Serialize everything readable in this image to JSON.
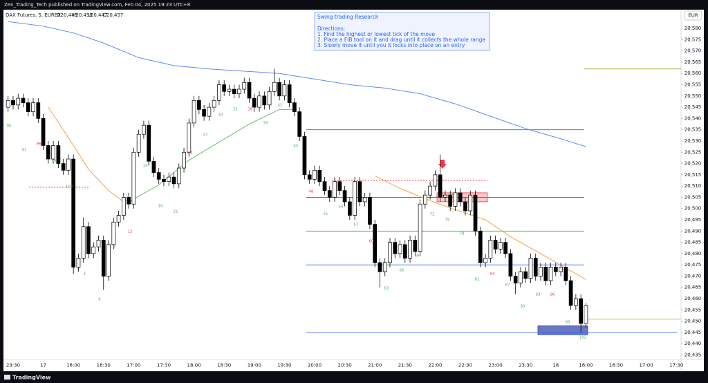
{
  "header": {
    "publisher": "Zen_Trading_Tech published on TradingView.com, Feb 04, 2025 19:23 UTC+8",
    "brand": "TradingView"
  },
  "chart_data": {
    "type": "candlestick",
    "symbol": "DAX Futures, 5, EUREX",
    "ohlc": [
      "O20,449",
      "H20,458",
      "L20,447",
      "C20,457"
    ],
    "currency": "EUR",
    "note": {
      "title": "Swing trading Research",
      "lines": [
        "Directions:",
        "1. Find the highest or lowest tick of the move",
        "2. Place a FIB tool on it and drag until it collects the whole range",
        "3. Slowly move it until you it locks into place on an entry"
      ]
    },
    "up_color": "#ffffff",
    "down_color": "#000000",
    "wick_color": "#000000",
    "categories": [
      null,
      "23:30",
      null,
      null,
      null,
      null,
      null,
      "17",
      null,
      null,
      null,
      null,
      null,
      "16:00",
      null,
      null,
      null,
      null,
      null,
      "16:30",
      null,
      null,
      null,
      null,
      null,
      "17:00",
      null,
      null,
      null,
      null,
      null,
      "17:30",
      null,
      null,
      null,
      null,
      null,
      "18:00",
      null,
      null,
      null,
      null,
      null,
      "18:30",
      null,
      null,
      null,
      null,
      null,
      "19:00",
      null,
      null,
      null,
      null,
      null,
      "19:30",
      null,
      null,
      null,
      null,
      null,
      "20:00",
      null,
      null,
      null,
      null,
      null,
      "20:30",
      null,
      null,
      null,
      null,
      null,
      "21:00",
      null,
      null,
      null,
      null,
      null,
      "21:30",
      null,
      null,
      null,
      null,
      null,
      "22:00",
      null,
      null,
      null,
      null,
      null,
      "22:30",
      null,
      null,
      null,
      null,
      null,
      "23:00",
      null,
      null,
      null,
      null,
      null,
      "23:30",
      null,
      null,
      null,
      null,
      null,
      "18",
      null,
      null,
      null,
      null,
      null,
      "16:00",
      null,
      null,
      null,
      null,
      null,
      "16:30",
      null,
      null,
      null,
      null,
      null,
      "17:00",
      null,
      null,
      null,
      null,
      null,
      "17:30"
    ],
    "open": [
      20545,
      20548,
      20546,
      20549,
      20547,
      20543,
      20547,
      20540,
      20528,
      20522,
      20528,
      20520,
      20517,
      20522,
      20474,
      20478,
      20492,
      20480,
      20483,
      20486,
      20470,
      20484,
      20494,
      20497,
      20505,
      20502,
      20525,
      20533,
      20537,
      20521,
      20516,
      20513,
      20512,
      20514,
      20511,
      20518,
      20525,
      20538,
      20548,
      20544,
      20541,
      20545,
      20548,
      20555,
      20552,
      20553,
      20551,
      20553,
      20556,
      20549,
      20545,
      20550,
      20546,
      20552,
      20556,
      20550,
      20555,
      20547,
      20543,
      20532,
      20515,
      20513,
      20517,
      20512,
      20508,
      20505,
      20512,
      20508,
      20503,
      20497,
      20512,
      20503,
      20505,
      20493,
      20476,
      20472,
      20476,
      20485,
      20480,
      20484,
      20478,
      20486,
      20481,
      20502,
      20506,
      20510,
      20515,
      20505,
      20506,
      20501,
      20507,
      20503,
      20499,
      20506,
      20490,
      20476,
      20478,
      20486,
      20482,
      20485,
      20480,
      20470,
      20467,
      20472,
      20469,
      20478,
      20470,
      20474,
      20468,
      20474,
      20472,
      20474,
      20468,
      20457,
      20460,
      20449,
      null,
      null,
      null,
      null,
      null,
      null,
      null,
      null,
      null,
      null,
      null,
      null,
      null,
      null,
      null,
      null,
      null,
      null
    ],
    "high": [
      20550,
      20550,
      20551,
      20551,
      20549,
      20549,
      20549,
      20542,
      20530,
      20530,
      20530,
      20522,
      20524,
      20524,
      20480,
      20496,
      20494,
      20485,
      20488,
      20488,
      20486,
      20496,
      20499,
      20507,
      20507,
      20527,
      20535,
      20539,
      20539,
      20523,
      20518,
      20515,
      20516,
      20516,
      20520,
      20527,
      20540,
      20550,
      20550,
      20546,
      20547,
      20550,
      20557,
      20557,
      20555,
      20555,
      20555,
      20558,
      20558,
      20551,
      20552,
      20552,
      20554,
      20562,
      20558,
      20557,
      20557,
      20549,
      20545,
      20534,
      20517,
      20519,
      20519,
      20514,
      20510,
      20514,
      20514,
      20510,
      20505,
      20514,
      20514,
      20507,
      20507,
      20495,
      20478,
      20478,
      20487,
      20487,
      20486,
      20486,
      20488,
      20488,
      20504,
      20508,
      20512,
      20517,
      20524,
      20508,
      20508,
      20509,
      20509,
      20505,
      20508,
      20508,
      20492,
      20480,
      20488,
      20488,
      20487,
      20487,
      20482,
      20472,
      20474,
      20474,
      20480,
      20480,
      20476,
      20476,
      20476,
      20476,
      20476,
      20476,
      20470,
      20462,
      20462,
      20458,
      null,
      null,
      null,
      null,
      null,
      null,
      null,
      null,
      null,
      null,
      null,
      null,
      null,
      null,
      null,
      null,
      null,
      null
    ],
    "low": [
      20543,
      20544,
      20544,
      20545,
      20541,
      20541,
      20538,
      20526,
      20520,
      20520,
      20518,
      20515,
      20515,
      20471,
      20472,
      20476,
      20478,
      20478,
      20481,
      20464,
      20468,
      20482,
      20492,
      20495,
      20500,
      20500,
      20523,
      20531,
      20519,
      20514,
      20511,
      20510,
      20510,
      20509,
      20509,
      20516,
      20523,
      20536,
      20542,
      20539,
      20539,
      20543,
      20546,
      20550,
      20550,
      20549,
      20549,
      20551,
      20547,
      20543,
      20543,
      20544,
      20544,
      20550,
      20548,
      20548,
      20545,
      20541,
      20530,
      20513,
      20511,
      20511,
      20510,
      20506,
      20503,
      20503,
      20506,
      20501,
      20495,
      20495,
      20501,
      20501,
      20491,
      20474,
      20465,
      20470,
      20474,
      20478,
      20478,
      20476,
      20476,
      20479,
      20479,
      20500,
      20504,
      20508,
      20503,
      20503,
      20499,
      20499,
      20501,
      20497,
      20497,
      20488,
      20474,
      20474,
      20476,
      20480,
      20480,
      20478,
      20468,
      20462,
      20465,
      20467,
      20467,
      20468,
      20468,
      20466,
      20466,
      20470,
      20470,
      20466,
      20455,
      20455,
      20445,
      20447,
      null,
      null,
      null,
      null,
      null,
      null,
      null,
      null,
      null,
      null,
      null,
      null,
      null,
      null,
      null,
      null,
      null,
      null
    ],
    "close": [
      20548,
      20546,
      20549,
      20547,
      20543,
      20547,
      20540,
      20528,
      20522,
      20528,
      20520,
      20517,
      20522,
      20474,
      20478,
      20492,
      20480,
      20483,
      20486,
      20470,
      20484,
      20494,
      20497,
      20505,
      20502,
      20525,
      20533,
      20537,
      20521,
      20516,
      20513,
      20512,
      20514,
      20511,
      20518,
      20525,
      20538,
      20548,
      20544,
      20541,
      20545,
      20548,
      20555,
      20552,
      20553,
      20551,
      20553,
      20556,
      20549,
      20545,
      20550,
      20546,
      20552,
      20556,
      20550,
      20555,
      20547,
      20543,
      20532,
      20515,
      20513,
      20517,
      20512,
      20508,
      20505,
      20512,
      20508,
      20503,
      20497,
      20512,
      20503,
      20505,
      20493,
      20476,
      20472,
      20476,
      20485,
      20480,
      20484,
      20478,
      20486,
      20481,
      20502,
      20506,
      20510,
      20515,
      20505,
      20506,
      20501,
      20507,
      20503,
      20499,
      20506,
      20490,
      20476,
      20478,
      20486,
      20482,
      20485,
      20480,
      20470,
      20467,
      20472,
      20469,
      20478,
      20470,
      20474,
      20468,
      20474,
      20472,
      20474,
      20468,
      20457,
      20460,
      20449,
      20457,
      null,
      null,
      null,
      null,
      null,
      null,
      null,
      null,
      null,
      null,
      null,
      null,
      null,
      null,
      null,
      null,
      null,
      null
    ],
    "indicators": [
      {
        "color": "#5b8def",
        "x": [
          0,
          7,
          13,
          19,
          26,
          33,
          40,
          47,
          54,
          61,
          68,
          75,
          82,
          89,
          96,
          103,
          110,
          115
        ],
        "values": [
          20583,
          20581,
          20578,
          20573.5,
          20567,
          20563.5,
          20562,
          20561,
          20560,
          20557.5,
          20555,
          20553.5,
          20551,
          20546.5,
          20541,
          20535.5,
          20531,
          20527.5
        ]
      },
      {
        "color": "#f7a14b",
        "x": [
          8,
          12,
          16,
          20,
          23,
          24,
          73,
          78,
          84,
          89,
          95,
          100,
          106,
          115
        ],
        "values": [
          20545,
          20531.5,
          20517.5,
          20508,
          20503,
          null,
          20514.5,
          20509,
          20503.5,
          20499.5,
          20495,
          20487.5,
          20480,
          20468.5
        ]
      },
      {
        "color": "#66bb6a",
        "x": [
          24,
          30,
          36,
          42,
          48,
          54,
          57,
          58,
          85,
          90
        ],
        "values": [
          20503,
          20510.5,
          20521.5,
          20529.5,
          20537.5,
          20544,
          20544,
          null,
          20505.5,
          20506.5
        ]
      }
    ],
    "levels": [
      {
        "value": 20535,
        "color": "#2962ff"
      },
      {
        "value": 20505,
        "color": "#2962ff"
      },
      {
        "value": 20490,
        "color": "#4caf50"
      },
      {
        "value": 20475,
        "color": "#2962ff"
      },
      {
        "value": 20445,
        "color": "#2962ff"
      },
      {
        "value": 20562,
        "color": "#9e9d24"
      },
      {
        "value": 20451,
        "color": "#9e9d24"
      }
    ],
    "dotted_levels": [
      {
        "value": 20509.5,
        "color": "#f23645"
      },
      {
        "value": 20512.5,
        "color": "#f23645"
      }
    ],
    "zones": [
      {
        "top": 20507,
        "bottom": 20503,
        "color": "#f23645"
      },
      {
        "top": 20448,
        "bottom": 20444,
        "color": "#3949ab"
      }
    ],
    "bar_counts": [
      {
        "label": "90",
        "color": "#4caf50"
      },
      {
        "label": "93",
        "color": "#4caf50"
      },
      {
        "label": "96",
        "color": "#f23645"
      },
      {
        "label": "99",
        "color": "#4caf50"
      },
      {
        "label": "102",
        "color": "#4caf50"
      },
      {
        "label": "3",
        "color": "#4caf50"
      },
      {
        "label": "6",
        "color": "#4caf50"
      },
      {
        "label": "9",
        "color": "#4caf50"
      },
      {
        "label": "12",
        "color": "#f23645"
      },
      {
        "label": "15",
        "color": "#4caf50"
      },
      {
        "label": "18",
        "color": "#4caf50"
      },
      {
        "label": "21",
        "color": "#4caf50"
      },
      {
        "label": "24",
        "color": "#f23645"
      },
      {
        "label": "27",
        "color": "#4caf50"
      },
      {
        "label": "30",
        "color": "#4caf50"
      },
      {
        "label": "33",
        "color": "#4caf50"
      },
      {
        "label": "36",
        "color": "#f23645"
      },
      {
        "label": "39",
        "color": "#4caf50"
      },
      {
        "label": "42",
        "color": "#4caf50"
      },
      {
        "label": "45",
        "color": "#4caf50"
      },
      {
        "label": "48",
        "color": "#f23645"
      },
      {
        "label": "51",
        "color": "#4caf50"
      },
      {
        "label": "54",
        "color": "#4caf50"
      },
      {
        "label": "57",
        "color": "#4caf50"
      },
      {
        "label": "60",
        "color": "#f23645"
      },
      {
        "label": "63",
        "color": "#4caf50"
      },
      {
        "label": "66",
        "color": "#4caf50"
      },
      {
        "label": "69",
        "color": "#4caf50"
      },
      {
        "label": "72",
        "color": "#4caf50"
      },
      {
        "label": "75",
        "color": "#4caf50"
      },
      {
        "label": "78",
        "color": "#4caf50"
      },
      {
        "label": "81",
        "color": "#4caf50"
      },
      {
        "label": "84",
        "color": "#f23645"
      },
      {
        "label": "87",
        "color": "#4caf50"
      },
      {
        "label": "90",
        "color": "#4caf50"
      },
      {
        "label": "93",
        "color": "#4caf50"
      },
      {
        "label": "96",
        "color": "#f23645"
      },
      {
        "label": "99",
        "color": "#4caf50"
      },
      {
        "label": "102",
        "color": "#4caf50"
      }
    ],
    "ylim": [
      20433,
      20588
    ],
    "yticks": [
      {
        "value": 20435,
        "label": "20,435"
      },
      {
        "value": 20440,
        "label": "20,440"
      },
      {
        "value": 20445,
        "label": "20,445"
      },
      {
        "value": 20450,
        "label": "20,450"
      },
      {
        "value": 20455,
        "label": "20,455"
      },
      {
        "value": 20460,
        "label": "20,460"
      },
      {
        "value": 20465,
        "label": "20,465"
      },
      {
        "value": 20470,
        "label": "20,470"
      },
      {
        "value": 20475,
        "label": "20,475"
      },
      {
        "value": 20480,
        "label": "20,480"
      },
      {
        "value": 20485,
        "label": "20,485"
      },
      {
        "value": 20490,
        "label": "20,490"
      },
      {
        "value": 20495,
        "label": "20,495"
      },
      {
        "value": 20500,
        "label": "20,500"
      },
      {
        "value": 20505,
        "label": "20,505"
      },
      {
        "value": 20510,
        "label": "20,510"
      },
      {
        "value": 20515,
        "label": "20,515"
      },
      {
        "value": 20520,
        "label": "20,520"
      },
      {
        "value": 20525,
        "label": "20,525"
      },
      {
        "value": 20530,
        "label": "20,530"
      },
      {
        "value": 20535,
        "label": "20,535"
      },
      {
        "value": 20540,
        "label": "20,540"
      },
      {
        "value": 20545,
        "label": "20,545"
      },
      {
        "value": 20550,
        "label": "20,550"
      },
      {
        "value": 20555,
        "label": "20,555"
      },
      {
        "value": 20560,
        "label": "20,560"
      },
      {
        "value": 20565,
        "label": "20,565"
      },
      {
        "value": 20570,
        "label": "20,570"
      },
      {
        "value": 20575,
        "label": "20,575"
      },
      {
        "value": 20580,
        "label": "20,580"
      }
    ],
    "grid": false
  }
}
